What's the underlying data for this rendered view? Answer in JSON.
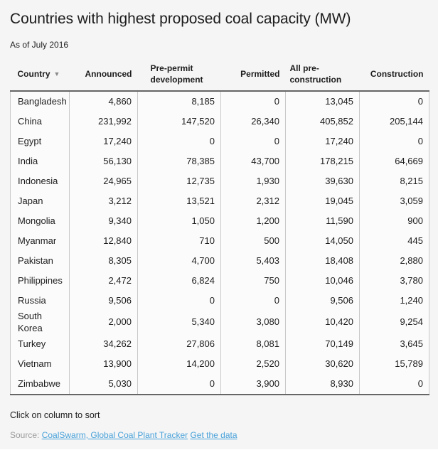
{
  "title": "Countries with highest proposed coal capacity (MW)",
  "subtitle": "As of July 2016",
  "table": {
    "sort_indicator": "▼",
    "columns": [
      {
        "id": "country",
        "label": "Country",
        "sorted": true
      },
      {
        "id": "announced",
        "label": "Announced",
        "sorted": false
      },
      {
        "id": "pre-permit-development",
        "label": "Pre-permit development",
        "sorted": false
      },
      {
        "id": "permitted",
        "label": "Permitted",
        "sorted": false
      },
      {
        "id": "all-pre-construction",
        "label": "All pre-construction",
        "sorted": false
      },
      {
        "id": "construction",
        "label": "Construction",
        "sorted": false
      }
    ],
    "rows": [
      {
        "country": "Bangladesh",
        "values": [
          "4,860",
          "8,185",
          "0",
          "13,045",
          "0"
        ]
      },
      {
        "country": "China",
        "values": [
          "231,992",
          "147,520",
          "26,340",
          "405,852",
          "205,144"
        ]
      },
      {
        "country": "Egypt",
        "values": [
          "17,240",
          "0",
          "0",
          "17,240",
          "0"
        ]
      },
      {
        "country": "India",
        "values": [
          "56,130",
          "78,385",
          "43,700",
          "178,215",
          "64,669"
        ]
      },
      {
        "country": "Indonesia",
        "values": [
          "24,965",
          "12,735",
          "1,930",
          "39,630",
          "8,215"
        ]
      },
      {
        "country": "Japan",
        "values": [
          "3,212",
          "13,521",
          "2,312",
          "19,045",
          "3,059"
        ]
      },
      {
        "country": "Mongolia",
        "values": [
          "9,340",
          "1,050",
          "1,200",
          "11,590",
          "900"
        ]
      },
      {
        "country": "Myanmar",
        "values": [
          "12,840",
          "710",
          "500",
          "14,050",
          "445"
        ]
      },
      {
        "country": "Pakistan",
        "values": [
          "8,305",
          "4,700",
          "5,403",
          "18,408",
          "2,880"
        ]
      },
      {
        "country": "Philippines",
        "values": [
          "2,472",
          "6,824",
          "750",
          "10,046",
          "3,780"
        ]
      },
      {
        "country": "Russia",
        "values": [
          "9,506",
          "0",
          "0",
          "9,506",
          "1,240"
        ]
      },
      {
        "country": "South Korea",
        "values": [
          "2,000",
          "5,340",
          "3,080",
          "10,420",
          "9,254"
        ]
      },
      {
        "country": "Turkey",
        "values": [
          "34,262",
          "27,806",
          "8,081",
          "70,149",
          "3,645"
        ]
      },
      {
        "country": "Vietnam",
        "values": [
          "13,900",
          "14,200",
          "2,520",
          "30,620",
          "15,789"
        ]
      },
      {
        "country": "Zimbabwe",
        "values": [
          "5,030",
          "0",
          "3,900",
          "8,930",
          "0"
        ]
      }
    ]
  },
  "footer": {
    "hint": "Click on column to sort",
    "source_label": "Source:",
    "links": [
      {
        "id": "source",
        "label": "CoalSwarm, Global Coal Plant Tracker"
      },
      {
        "id": "get-data",
        "label": "Get the data"
      }
    ]
  },
  "colors": {
    "page_background": "#f5f5f6",
    "table_background": "#fbfbfb",
    "strong_border": "#666666",
    "light_border": "#c9c9c9",
    "text": "#1d1d1d",
    "source_text": "#9b9b9b",
    "link_blue": "#47a1d9",
    "sort_arrow": "#8a8a8a"
  },
  "chart_data": {
    "type": "table",
    "title": "Countries with highest proposed coal capacity (MW)",
    "subtitle": "As of July 2016",
    "columns": [
      "Country",
      "Announced",
      "Pre-permit development",
      "Permitted",
      "All pre-construction",
      "Construction"
    ],
    "sorted_by": "Country",
    "sort_direction": "ascending",
    "rows": [
      [
        "Bangladesh",
        4860,
        8185,
        0,
        13045,
        0
      ],
      [
        "China",
        231992,
        147520,
        26340,
        405852,
        205144
      ],
      [
        "Egypt",
        17240,
        0,
        0,
        17240,
        0
      ],
      [
        "India",
        56130,
        78385,
        43700,
        178215,
        64669
      ],
      [
        "Indonesia",
        24965,
        12735,
        1930,
        39630,
        8215
      ],
      [
        "Japan",
        3212,
        13521,
        2312,
        19045,
        3059
      ],
      [
        "Mongolia",
        9340,
        1050,
        1200,
        11590,
        900
      ],
      [
        "Myanmar",
        12840,
        710,
        500,
        14050,
        445
      ],
      [
        "Pakistan",
        8305,
        4700,
        5403,
        18408,
        2880
      ],
      [
        "Philippines",
        2472,
        6824,
        750,
        10046,
        3780
      ],
      [
        "Russia",
        9506,
        0,
        0,
        9506,
        1240
      ],
      [
        "South Korea",
        2000,
        5340,
        3080,
        10420,
        9254
      ],
      [
        "Turkey",
        34262,
        27806,
        8081,
        70149,
        3645
      ],
      [
        "Vietnam",
        13900,
        14200,
        2520,
        30620,
        15789
      ],
      [
        "Zimbabwe",
        5030,
        0,
        3900,
        8930,
        0
      ]
    ],
    "source": "CoalSwarm, Global Coal Plant Tracker"
  }
}
